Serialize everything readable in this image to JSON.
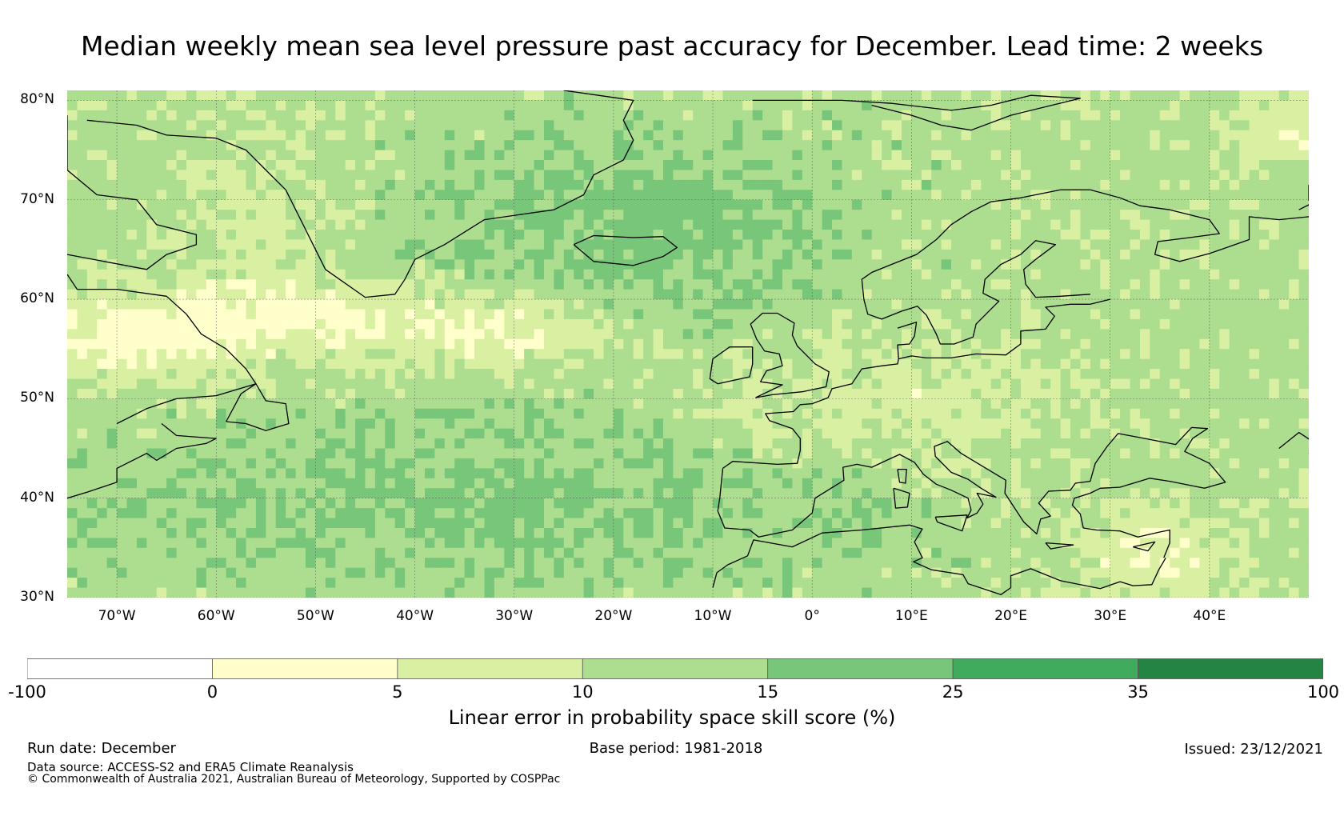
{
  "title": "Median weekly mean sea level pressure past accuracy for December. Lead time: 2 weeks",
  "map": {
    "lon_range": [
      -75,
      50
    ],
    "lat_range": [
      30,
      81
    ],
    "lat_ticks": [
      {
        "lat": 80,
        "label": "80°N"
      },
      {
        "lat": 70,
        "label": "70°N"
      },
      {
        "lat": 60,
        "label": "60°N"
      },
      {
        "lat": 50,
        "label": "50°N"
      },
      {
        "lat": 40,
        "label": "40°N"
      },
      {
        "lat": 30,
        "label": "30°N"
      }
    ],
    "lon_ticks": [
      {
        "lon": -70,
        "label": "70°W"
      },
      {
        "lon": -60,
        "label": "60°W"
      },
      {
        "lon": -50,
        "label": "50°W"
      },
      {
        "lon": -40,
        "label": "40°W"
      },
      {
        "lon": -30,
        "label": "30°W"
      },
      {
        "lon": -20,
        "label": "20°W"
      },
      {
        "lon": -10,
        "label": "10°W"
      },
      {
        "lon": 0,
        "label": "0°"
      },
      {
        "lon": 10,
        "label": "10°E"
      },
      {
        "lon": 20,
        "label": "20°E"
      },
      {
        "lon": 30,
        "label": "30°E"
      },
      {
        "lon": 40,
        "label": "40°E"
      }
    ]
  },
  "colorbar": {
    "bounds": [
      -100,
      0,
      5,
      10,
      15,
      25,
      35,
      100
    ],
    "labels": [
      "-100",
      "0",
      "5",
      "10",
      "15",
      "25",
      "35",
      "100"
    ],
    "colors": [
      "#ffffff",
      "#ffffcc",
      "#d9f0a3",
      "#addd8e",
      "#78c679",
      "#41ab5d",
      "#238443"
    ],
    "title": "Linear error in probability space skill score (%)"
  },
  "footer": {
    "run_date": "Run date: December",
    "base_period": "Base period: 1981-2018",
    "issued": "Issued: 23/12/2021",
    "data_source": "Data source: ACCESS-S2 and ERA5 Climate Reanalysis",
    "copyright": "© Commonwealth of Australia 2021, Australian Bureau of Meteorology, Supported by COSPPac"
  },
  "icons": {
    "coastline": "coastline-outline",
    "gridline": "dashed-graticule"
  }
}
